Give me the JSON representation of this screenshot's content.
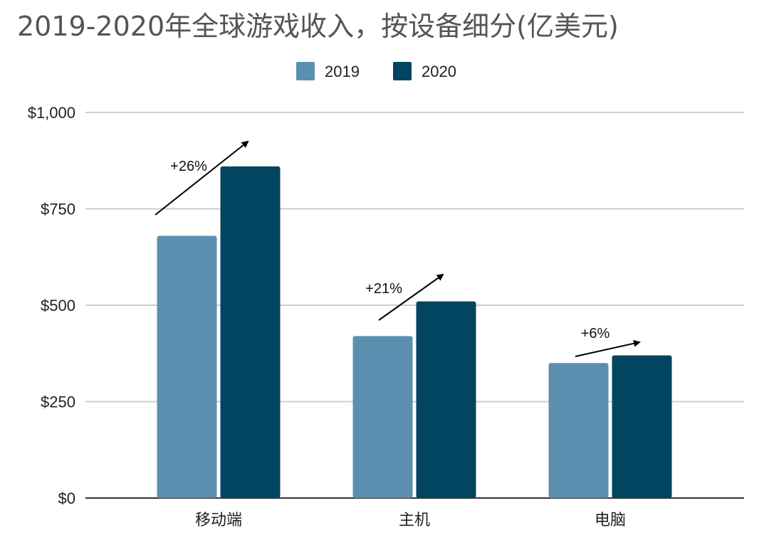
{
  "chart_data": {
    "type": "bar",
    "title": "2019-2020年全球游戏收入，按设备细分(亿美元)",
    "categories": [
      "移动端",
      "主机",
      "电脑"
    ],
    "series": [
      {
        "name": "2019",
        "values": [
          680,
          420,
          350
        ],
        "color": "#5a8faf"
      },
      {
        "name": "2020",
        "values": [
          860,
          510,
          370
        ],
        "color": "#024560"
      }
    ],
    "ylim": [
      0,
      1000
    ],
    "yticks": [
      0,
      250,
      500,
      750,
      1000
    ],
    "ytick_labels": [
      "$0",
      "$250",
      "$500",
      "$750",
      "$1,000"
    ],
    "grid": true,
    "legend_position": "top-center",
    "annotations": [
      "+26%",
      "+21%",
      "+6%"
    ]
  }
}
